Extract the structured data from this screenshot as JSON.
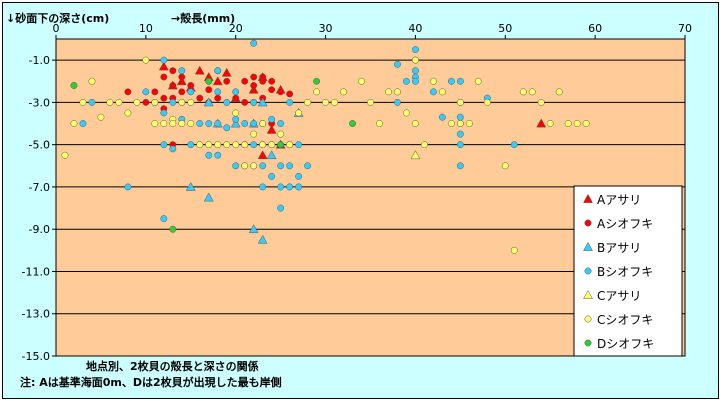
{
  "chart_data": {
    "type": "scatter",
    "title": "",
    "ylabel": "↓砂面下の深さ(cm)",
    "xlabel": "→殻長(mm)",
    "xlim": [
      0,
      70
    ],
    "ylim": [
      -15.0,
      0
    ],
    "x_ticks": [
      "0",
      "10",
      "20",
      "30",
      "40",
      "50",
      "60",
      "70"
    ],
    "y_ticks": [
      "-1.0",
      "-3.0",
      "-5.0",
      "-7.0",
      "-9.0",
      "-11.0",
      "-13.0",
      "-15.0"
    ],
    "grid": "horizontal",
    "legend": "right",
    "caption_line1": "地点別、2枚貝の殻長と深さの関係",
    "caption_line2": "注: Aは基準海面0m、Dは2枚貝が出現した最も岸側",
    "colors": {
      "plot_bg": "#ffcc99",
      "outer_bg": "#ccffff",
      "red": "#ff0000",
      "blue": "#33ccff",
      "yellow": "#ffff66",
      "green": "#33cc33"
    },
    "series": [
      {
        "name": "Aアサリ",
        "marker": "triangle",
        "color": "#ff0000",
        "points": [
          [
            12,
            -1.3
          ],
          [
            13,
            -2.2
          ],
          [
            14,
            -2.0
          ],
          [
            15,
            -2.3
          ],
          [
            16,
            -1.5
          ],
          [
            17,
            -1.8
          ],
          [
            18,
            -2.0
          ],
          [
            19,
            -1.6
          ],
          [
            20,
            -2.8
          ],
          [
            22,
            -2.4
          ],
          [
            23,
            -1.8
          ],
          [
            23,
            -5.5
          ],
          [
            24,
            -4.3
          ],
          [
            25,
            -2.4
          ],
          [
            25,
            -5.0
          ],
          [
            54,
            -4.0
          ]
        ]
      },
      {
        "name": "Aシオフキ",
        "marker": "circle",
        "color": "#ff0000",
        "points": [
          [
            8,
            -2.5
          ],
          [
            10,
            -3.0
          ],
          [
            11,
            -2.5
          ],
          [
            11,
            -3.0
          ],
          [
            12,
            -1.8
          ],
          [
            12,
            -2.8
          ],
          [
            12,
            -3.3
          ],
          [
            13,
            -1.5
          ],
          [
            13,
            -2.2
          ],
          [
            13,
            -2.8
          ],
          [
            13,
            -5.0
          ],
          [
            14,
            -1.8
          ],
          [
            14,
            -2.5
          ],
          [
            14,
            -3.0
          ],
          [
            15,
            -2.2
          ],
          [
            16,
            -2.8
          ],
          [
            17,
            -2.0
          ],
          [
            17,
            -2.4
          ],
          [
            17,
            -3.0
          ],
          [
            18,
            -1.5
          ],
          [
            18,
            -2.8
          ],
          [
            19,
            -2.0
          ],
          [
            20,
            -2.8
          ],
          [
            21,
            -2.0
          ],
          [
            21,
            -3.0
          ],
          [
            22,
            -1.8
          ],
          [
            22,
            -2.2
          ],
          [
            22,
            -3.0
          ],
          [
            23,
            -1.8
          ],
          [
            23,
            -2.0
          ],
          [
            23,
            -2.8
          ],
          [
            24,
            -2.0
          ],
          [
            24,
            -2.4
          ],
          [
            24,
            -4.0
          ],
          [
            25,
            -2.5
          ],
          [
            26,
            -2.6
          ]
        ]
      },
      {
        "name": "Bアサリ",
        "marker": "triangle",
        "color": "#33ccff",
        "points": [
          [
            15,
            -7.0
          ],
          [
            17,
            -7.5
          ],
          [
            17,
            -3.0
          ],
          [
            18,
            -4.0
          ],
          [
            20,
            -4.0
          ],
          [
            22,
            -4.0
          ],
          [
            22,
            -9.0
          ],
          [
            23,
            -9.5
          ],
          [
            23,
            -3.0
          ],
          [
            24,
            -5.5
          ],
          [
            27,
            -3.5
          ]
        ]
      },
      {
        "name": "Bシオフキ",
        "marker": "circle",
        "color": "#33ccff",
        "points": [
          [
            3,
            -4.0
          ],
          [
            4,
            -3.0
          ],
          [
            8,
            -7.0
          ],
          [
            10,
            -2.5
          ],
          [
            11,
            -3.0
          ],
          [
            12,
            -1.0
          ],
          [
            12,
            -3.5
          ],
          [
            12,
            -5.0
          ],
          [
            12,
            -8.5
          ],
          [
            13,
            -3.0
          ],
          [
            13,
            -5.2
          ],
          [
            14,
            -1.5
          ],
          [
            14,
            -3.8
          ],
          [
            15,
            -2.5
          ],
          [
            15,
            -5.0
          ],
          [
            16,
            -4.0
          ],
          [
            17,
            -4.0
          ],
          [
            17,
            -5.5
          ],
          [
            18,
            -2.5
          ],
          [
            18,
            -5.5
          ],
          [
            18,
            -4.0
          ],
          [
            18,
            -1.5
          ],
          [
            19,
            -3.0
          ],
          [
            19,
            -4.2
          ],
          [
            20,
            -2.5
          ],
          [
            20,
            -3.8
          ],
          [
            20,
            -6.0
          ],
          [
            21,
            -4.0
          ],
          [
            21,
            -5.0
          ],
          [
            21,
            -6.0
          ],
          [
            22,
            -3.0
          ],
          [
            22,
            -4.0
          ],
          [
            22,
            -5.0
          ],
          [
            22,
            -6.0
          ],
          [
            22,
            -0.2
          ],
          [
            23,
            -4.0
          ],
          [
            23,
            -5.0
          ],
          [
            23,
            -6.0
          ],
          [
            23,
            -7.0
          ],
          [
            24,
            -3.8
          ],
          [
            24,
            -5.0
          ],
          [
            24,
            -6.5
          ],
          [
            25,
            -4.0
          ],
          [
            25,
            -5.0
          ],
          [
            25,
            -6.0
          ],
          [
            25,
            -7.0
          ],
          [
            25,
            -8.0
          ],
          [
            26,
            -3.0
          ],
          [
            26,
            -5.0
          ],
          [
            26,
            -6.0
          ],
          [
            26,
            -7.0
          ],
          [
            27,
            -5.0
          ],
          [
            27,
            -6.5
          ],
          [
            27,
            -7.0
          ],
          [
            28,
            -6.0
          ],
          [
            38,
            -1.2
          ],
          [
            38,
            -3.0
          ],
          [
            39,
            -2.0
          ],
          [
            40,
            -0.5
          ],
          [
            40,
            -1.0
          ],
          [
            40,
            -1.5
          ],
          [
            40,
            -1.8
          ],
          [
            40,
            -2.0
          ],
          [
            42,
            -2.5
          ],
          [
            43,
            -3.7
          ],
          [
            44,
            -2.0
          ],
          [
            45,
            -2.0
          ],
          [
            45,
            -3.0
          ],
          [
            45,
            -3.7
          ],
          [
            45,
            -4.0
          ],
          [
            45,
            -4.5
          ],
          [
            45,
            -5.0
          ],
          [
            45,
            -6.0
          ],
          [
            48,
            -2.8
          ],
          [
            51,
            -5.0
          ]
        ]
      },
      {
        "name": "Cアサリ",
        "marker": "triangle",
        "color": "#ffff66",
        "points": [
          [
            40,
            -5.5
          ]
        ]
      },
      {
        "name": "Cシオフキ",
        "marker": "circle",
        "color": "#ffff66",
        "points": [
          [
            1,
            -5.5
          ],
          [
            2,
            -4.0
          ],
          [
            3,
            -3.0
          ],
          [
            4,
            -2.0
          ],
          [
            5,
            -3.7
          ],
          [
            6,
            -3.0
          ],
          [
            7,
            -3.0
          ],
          [
            8,
            -3.5
          ],
          [
            9,
            -3.0
          ],
          [
            10,
            -1.0
          ],
          [
            11,
            -3.0
          ],
          [
            11,
            -4.0
          ],
          [
            12,
            -4.0
          ],
          [
            13,
            -3.8
          ],
          [
            13,
            -4.0
          ],
          [
            14,
            -3.0
          ],
          [
            14,
            -4.0
          ],
          [
            15,
            -3.0
          ],
          [
            15,
            -4.0
          ],
          [
            16,
            -5.0
          ],
          [
            17,
            -5.0
          ],
          [
            18,
            -5.0
          ],
          [
            19,
            -5.0
          ],
          [
            20,
            -3.5
          ],
          [
            20,
            -5.0
          ],
          [
            21,
            -5.0
          ],
          [
            21,
            -6.0
          ],
          [
            22,
            -4.5
          ],
          [
            22,
            -6.0
          ],
          [
            23,
            -4.0
          ],
          [
            23,
            -5.0
          ],
          [
            24,
            -5.0
          ],
          [
            25,
            -4.5
          ],
          [
            26,
            -5.0
          ],
          [
            27,
            -3.5
          ],
          [
            28,
            -3.0
          ],
          [
            29,
            -2.5
          ],
          [
            30,
            -3.0
          ],
          [
            31,
            -3.0
          ],
          [
            32,
            -2.5
          ],
          [
            34,
            -2.0
          ],
          [
            35,
            -3.0
          ],
          [
            36,
            -4.0
          ],
          [
            37,
            -2.5
          ],
          [
            38,
            -2.5
          ],
          [
            39,
            -3.5
          ],
          [
            40,
            -1.0
          ],
          [
            40,
            -4.0
          ],
          [
            41,
            -5.0
          ],
          [
            42,
            -2.0
          ],
          [
            43,
            -2.5
          ],
          [
            44,
            -4.0
          ],
          [
            45,
            -4.0
          ],
          [
            45,
            -3.0
          ],
          [
            46,
            -4.0
          ],
          [
            47,
            -2.0
          ],
          [
            48,
            -3.0
          ],
          [
            50,
            -6.0
          ],
          [
            51,
            -10.0
          ],
          [
            52,
            -2.5
          ],
          [
            53,
            -2.5
          ],
          [
            54,
            -3.0
          ],
          [
            55,
            -4.0
          ],
          [
            56,
            -2.5
          ],
          [
            57,
            -4.0
          ],
          [
            58,
            -4.0
          ],
          [
            59,
            -4.0
          ]
        ]
      },
      {
        "name": "Dシオフキ",
        "marker": "circle",
        "color": "#33cc33",
        "points": [
          [
            2,
            -2.2
          ],
          [
            13,
            -9.0
          ],
          [
            17,
            -2.0
          ],
          [
            25,
            -5.0
          ],
          [
            29,
            -2.0
          ],
          [
            33,
            -4.0
          ]
        ]
      }
    ]
  }
}
